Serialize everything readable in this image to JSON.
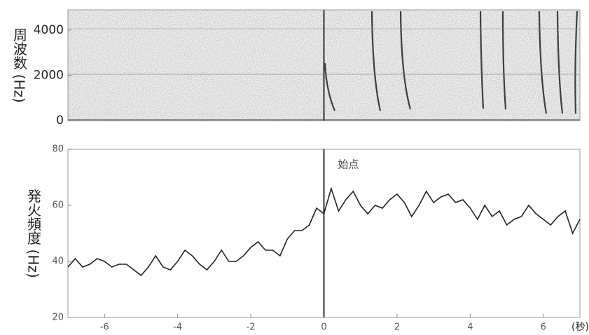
{
  "chart_data": [
    {
      "type": "spectrogram",
      "y_label": "周波数 (Hz)",
      "xlim": [
        -7,
        7
      ],
      "ylim": [
        0,
        4900
      ],
      "yticks": [
        0,
        2000,
        4000
      ],
      "marker_x": 0
    },
    {
      "type": "line",
      "y_label": "発火頻度 (Hz)",
      "x_label": "(秒)",
      "annotation": "始点",
      "color": "#222",
      "xlim": [
        -7,
        7
      ],
      "xticks": [
        -6,
        -4,
        -2,
        0,
        2,
        4,
        6
      ],
      "ylim": [
        20,
        80
      ],
      "yticks": [
        20,
        40,
        60,
        80
      ],
      "marker_x": 0,
      "x": [
        -7.0,
        -6.8,
        -6.6,
        -6.4,
        -6.2,
        -6.0,
        -5.8,
        -5.6,
        -5.4,
        -5.2,
        -5.0,
        -4.8,
        -4.6,
        -4.4,
        -4.2,
        -4.0,
        -3.8,
        -3.6,
        -3.4,
        -3.2,
        -3.0,
        -2.8,
        -2.6,
        -2.4,
        -2.2,
        -2.0,
        -1.8,
        -1.6,
        -1.4,
        -1.2,
        -1.0,
        -0.8,
        -0.6,
        -0.4,
        -0.2,
        0.0,
        0.2,
        0.4,
        0.6,
        0.8,
        1.0,
        1.2,
        1.4,
        1.6,
        1.8,
        2.0,
        2.2,
        2.4,
        2.6,
        2.8,
        3.0,
        3.2,
        3.4,
        3.6,
        3.8,
        4.0,
        4.2,
        4.4,
        4.6,
        4.8,
        5.0,
        5.2,
        5.4,
        5.6,
        5.8,
        6.0,
        6.2,
        6.4,
        6.6,
        6.8,
        7.0
      ],
      "values": [
        38,
        41,
        38,
        39,
        41,
        40,
        38,
        39,
        39,
        37,
        35,
        38,
        42,
        38,
        37,
        40,
        44,
        42,
        39,
        37,
        40,
        44,
        40,
        40,
        42,
        45,
        47,
        44,
        44,
        42,
        48,
        51,
        51,
        53,
        59,
        57,
        66,
        58,
        62,
        65,
        60,
        57,
        60,
        59,
        62,
        64,
        61,
        56,
        60,
        65,
        61,
        63,
        64,
        61,
        62,
        59,
        55,
        60,
        56,
        58,
        53,
        55,
        56,
        60,
        57,
        55,
        53,
        56,
        58,
        50,
        55
      ]
    }
  ]
}
